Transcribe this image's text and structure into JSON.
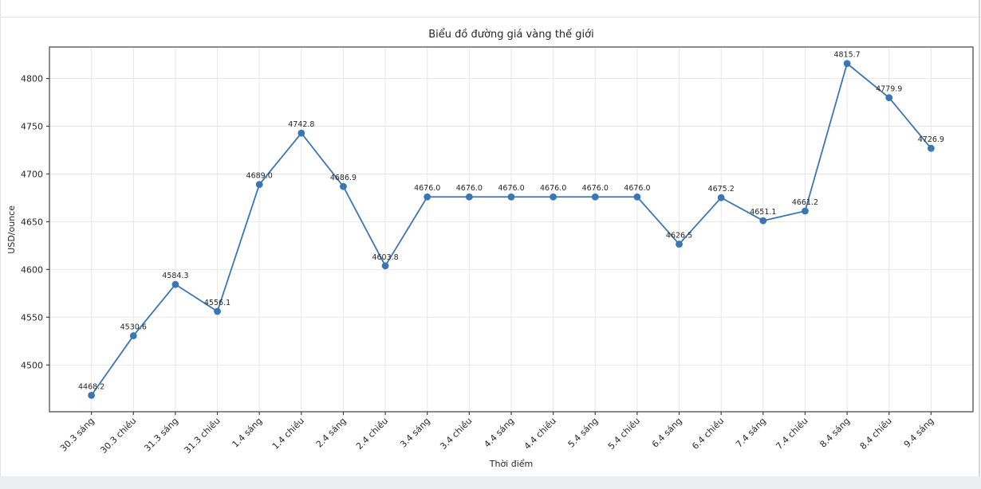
{
  "chart_data": {
    "type": "line",
    "title": "Biểu đồ đường giá vàng thế giới",
    "xlabel": "Thời điểm",
    "ylabel": "USD/ounce",
    "categories": [
      "30.3 sáng",
      "30.3 chiều",
      "31.3 sáng",
      "31.3 chiều",
      "1.4 sáng",
      "1.4 chiều",
      "2.4 sáng",
      "2.4 chiều",
      "3.4 sáng",
      "3.4 chiều",
      "4.4 sáng",
      "4.4 chiều",
      "5.4 sáng",
      "5.4 chiều",
      "6.4 sáng",
      "6.4 chiều",
      "7.4 sáng",
      "7.4 chiều",
      "8.4 sáng",
      "8.4 chiều",
      "9.4 sáng"
    ],
    "values": [
      4468.2,
      4530.6,
      4584.3,
      4556.1,
      4689.0,
      4742.8,
      4686.9,
      4603.8,
      4676.0,
      4676.0,
      4676.0,
      4676.0,
      4676.0,
      4676.0,
      4626.5,
      4675.2,
      4651.1,
      4661.2,
      4815.7,
      4779.9,
      4726.9
    ],
    "point_labels": [
      "4468.2",
      "4530.6",
      "4584.3",
      "4556.1",
      "4689.0",
      "4742.8",
      "4686.9",
      "4603.8",
      "4676.0",
      "4676.0",
      "4676.0",
      "4676.0",
      "4676.0",
      "4676.0",
      "4626.5",
      "4675.2",
      "4651.1",
      "4661.2",
      "4815.7",
      "4779.9",
      "4726.9"
    ],
    "yticks": [
      4500,
      4550,
      4600,
      4650,
      4700,
      4750,
      4800
    ],
    "ylim": [
      4451,
      4833
    ],
    "grid": true,
    "legend": "none",
    "line_color": "#3a76b2",
    "marker_color": "#3a76b2",
    "grid_color": "#e7e7e7",
    "spine_color": "#404040",
    "text_color": "#262626"
  }
}
